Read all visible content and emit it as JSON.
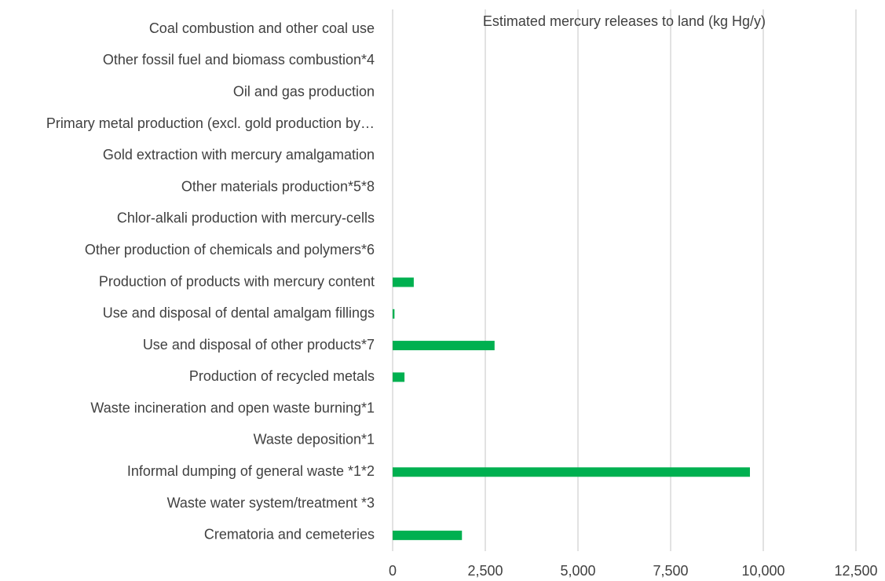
{
  "chart_data": {
    "type": "hbar",
    "title": "Estimated  mercury releases to land (kg Hg/y)",
    "categories": [
      "Coal combustion and other coal use",
      "Other fossil fuel and biomass combustion*4",
      "Oil and gas production",
      "Primary metal production (excl. gold production by…",
      "Gold extraction with mercury amalgamation",
      "Other materials production*5*8",
      "Chlor-alkali production with mercury-cells",
      "Other production of chemicals and polymers*6",
      "Production of products with mercury content",
      "Use and disposal of dental amalgam fillings",
      "Use and disposal of other products*7",
      "Production of recycled metals",
      "Waste incineration and open waste burning*1",
      "Waste deposition*1",
      "Informal dumping of general waste *1*2",
      "Waste water system/treatment  *3",
      "Crematoria and cemeteries"
    ],
    "values": [
      0,
      0,
      0,
      0,
      0,
      0,
      0,
      0,
      570,
      50,
      2750,
      320,
      0,
      0,
      9640,
      0,
      1870
    ],
    "color": "#00b050",
    "xlim": [
      0,
      12500
    ],
    "xticks": [
      0,
      {
        "value": 2500,
        "label": "2,500"
      },
      {
        "value": 5000,
        "label": "5,000"
      },
      {
        "value": 7500,
        "label": "7,500"
      },
      {
        "value": 10000,
        "label": "10,000"
      },
      {
        "value": 12500,
        "label": "12,500"
      }
    ],
    "grid": true
  }
}
